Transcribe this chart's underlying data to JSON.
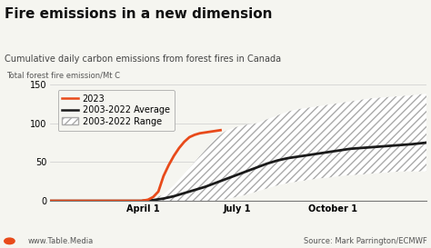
{
  "title": "Fire emissions in a new dimension",
  "subtitle": "Cumulative daily carbon emissions from forest fires in Canada",
  "ylabel": "Total forest fire emission/Mt C",
  "source": "Source: Mark Parrington/ECMWF",
  "website": "www.Table.Media",
  "ylim": [
    0,
    150
  ],
  "yticks": [
    0,
    50,
    100,
    150
  ],
  "xtick_labels": [
    "April 1",
    "July 1",
    "October 1"
  ],
  "legend_labels": [
    "2023",
    "2003-2022 Average",
    "2003-2022 Range"
  ],
  "color_2023": "#e84a1a",
  "color_avg": "#1a1a1a",
  "color_range_hatch": "#aaaaaa",
  "background_color": "#f5f5f0",
  "title_fontsize": 11,
  "subtitle_fontsize": 7,
  "axis_fontsize": 7,
  "legend_fontsize": 7,
  "ylabel_fontsize": 6,
  "x_april1": 90,
  "x_july1": 181,
  "x_oct1": 273,
  "x_2023": [
    0,
    89,
    90,
    95,
    100,
    105,
    110,
    115,
    120,
    125,
    130,
    135,
    140,
    145,
    150,
    155,
    160,
    165
  ],
  "y_2023": [
    0,
    0,
    0.3,
    1.5,
    5,
    12,
    32,
    46,
    58,
    68,
    76,
    82,
    85,
    87,
    88,
    89,
    90,
    91
  ],
  "x_avg": [
    0,
    89,
    90,
    100,
    110,
    120,
    130,
    140,
    150,
    160,
    170,
    180,
    190,
    200,
    210,
    220,
    230,
    240,
    250,
    260,
    270,
    280,
    290,
    300,
    310,
    320,
    330,
    340,
    350,
    364
  ],
  "y_avg": [
    0,
    0,
    0.2,
    1,
    3,
    6,
    10,
    14,
    18,
    23,
    28,
    33,
    38,
    43,
    48,
    52,
    55,
    57,
    59,
    61,
    63,
    65,
    67,
    68,
    69,
    70,
    71,
    72,
    73,
    75
  ],
  "x_range": [
    0,
    60,
    89,
    90,
    100,
    110,
    120,
    130,
    140,
    150,
    160,
    170,
    180,
    190,
    200,
    210,
    220,
    230,
    240,
    250,
    260,
    270,
    280,
    290,
    300,
    310,
    320,
    330,
    340,
    350,
    364
  ],
  "y_range_low": [
    0,
    0,
    0,
    0,
    0,
    0,
    0,
    0,
    0,
    0,
    0,
    2,
    5,
    8,
    12,
    16,
    20,
    23,
    25,
    27,
    29,
    30,
    32,
    33,
    34,
    35,
    36,
    37,
    38,
    38,
    38
  ],
  "y_range_high": [
    0,
    0,
    0,
    1,
    3,
    8,
    20,
    35,
    50,
    65,
    80,
    90,
    95,
    98,
    100,
    105,
    110,
    115,
    118,
    120,
    122,
    124,
    126,
    128,
    130,
    132,
    133,
    134,
    135,
    136,
    138
  ]
}
